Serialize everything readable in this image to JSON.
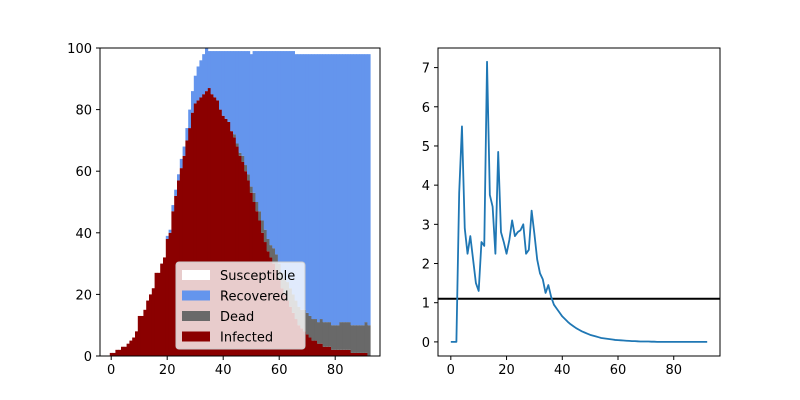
{
  "chart_data": [
    {
      "type": "area",
      "stacked": true,
      "step": true,
      "x": [
        0,
        1,
        2,
        3,
        4,
        5,
        6,
        7,
        8,
        9,
        10,
        11,
        12,
        13,
        14,
        15,
        16,
        17,
        18,
        19,
        20,
        21,
        22,
        23,
        24,
        25,
        26,
        27,
        28,
        29,
        30,
        31,
        32,
        33,
        34,
        35,
        36,
        37,
        38,
        39,
        40,
        41,
        42,
        43,
        44,
        45,
        46,
        47,
        48,
        49,
        50,
        51,
        52,
        53,
        54,
        55,
        56,
        57,
        58,
        59,
        60,
        61,
        62,
        63,
        64,
        65,
        66,
        67,
        68,
        69,
        70,
        71,
        72,
        73,
        74,
        75,
        76,
        77,
        78,
        79,
        80,
        81,
        82,
        83,
        84,
        85,
        86,
        87,
        88,
        89,
        90,
        91,
        92
      ],
      "xlim": [
        -4,
        96
      ],
      "ylim": [
        0,
        100
      ],
      "xticks": [
        "0",
        "20",
        "40",
        "60",
        "80"
      ],
      "yticks": [
        "0",
        "20",
        "40",
        "60",
        "80",
        "100"
      ],
      "series": [
        {
          "name": "Infected",
          "color": "#8b0000",
          "values": [
            1,
            1,
            2,
            2,
            3,
            3,
            4,
            5,
            6,
            8,
            13,
            13,
            15,
            18,
            20,
            22,
            27,
            27,
            30,
            32,
            38,
            40,
            47,
            52,
            57,
            61,
            65,
            70,
            74,
            79,
            82,
            83,
            84,
            85,
            86,
            87,
            85,
            84,
            83,
            80,
            78,
            77,
            76,
            73,
            71,
            68,
            65,
            63,
            60,
            57,
            53,
            50,
            47,
            44,
            40,
            37,
            34,
            32,
            30,
            28,
            25,
            22,
            20,
            18,
            16,
            14,
            12,
            10,
            9,
            8,
            7,
            6,
            5,
            5,
            4,
            4,
            3,
            3,
            3,
            2,
            2,
            2,
            2,
            2,
            2,
            2,
            1,
            1,
            1,
            1,
            1,
            1,
            0
          ]
        },
        {
          "name": "Dead",
          "color": "#696969",
          "values": [
            0,
            0,
            0,
            0,
            0,
            0,
            0,
            0,
            0,
            0,
            0,
            0,
            0,
            0,
            0,
            0,
            0,
            0,
            0,
            0,
            0,
            0,
            0,
            0,
            0,
            0,
            0,
            0,
            0,
            0,
            0,
            0,
            0,
            0,
            0,
            0,
            0,
            0,
            0,
            0,
            0,
            0,
            0,
            0,
            1,
            1,
            1,
            2,
            2,
            2,
            2,
            3,
            3,
            3,
            4,
            4,
            4,
            4,
            5,
            5,
            5,
            5,
            5,
            6,
            6,
            6,
            6,
            6,
            6,
            7,
            7,
            7,
            7,
            7,
            7,
            8,
            8,
            8,
            8,
            8,
            8,
            8,
            9,
            9,
            9,
            9,
            9,
            9,
            9,
            9,
            9,
            10,
            10
          ]
        },
        {
          "name": "Recovered",
          "color": "#6495ed",
          "values": [
            0,
            0,
            0,
            0,
            0,
            0,
            0,
            0,
            0,
            0,
            0,
            0,
            0,
            0,
            0,
            0,
            0,
            0,
            0,
            0,
            1,
            1,
            2,
            2,
            2,
            3,
            3,
            4,
            6,
            7,
            9,
            11,
            12,
            13,
            14,
            12,
            14,
            15,
            16,
            19,
            21,
            22,
            23,
            26,
            27,
            30,
            33,
            34,
            37,
            40,
            43,
            46,
            49,
            52,
            55,
            58,
            61,
            63,
            64,
            66,
            69,
            72,
            74,
            75,
            77,
            79,
            80,
            82,
            83,
            83,
            84,
            85,
            86,
            86,
            87,
            86,
            87,
            87,
            87,
            88,
            88,
            88,
            87,
            87,
            87,
            87,
            88,
            88,
            88,
            88,
            88,
            87,
            88
          ]
        }
      ],
      "legend": {
        "position": "lower-center",
        "entries": [
          {
            "label": "Susceptible",
            "color": "#ffffff"
          },
          {
            "label": "Recovered",
            "color": "#6495ed"
          },
          {
            "label": "Dead",
            "color": "#696969"
          },
          {
            "label": "Infected",
            "color": "#8b0000"
          }
        ]
      }
    },
    {
      "type": "line",
      "x": [
        0,
        1,
        2,
        3,
        4,
        5,
        6,
        7,
        8,
        9,
        10,
        11,
        12,
        13,
        14,
        15,
        16,
        17,
        18,
        19,
        20,
        21,
        22,
        23,
        24,
        25,
        26,
        27,
        28,
        29,
        30,
        31,
        32,
        33,
        34,
        35,
        36,
        37,
        38,
        39,
        40,
        41,
        42,
        43,
        44,
        45,
        46,
        47,
        48,
        49,
        50,
        51,
        52,
        53,
        54,
        55,
        56,
        57,
        58,
        59,
        60,
        61,
        62,
        63,
        64,
        65,
        66,
        67,
        68,
        69,
        70,
        71,
        72,
        73,
        74,
        75,
        76,
        77,
        78,
        79,
        80,
        81,
        82,
        83,
        84,
        85,
        86,
        87,
        88,
        89,
        90,
        91,
        92
      ],
      "series": [
        {
          "color": "#1f77b4",
          "values": [
            0,
            0,
            0,
            3.8,
            5.5,
            2.9,
            2.25,
            2.7,
            2.1,
            1.5,
            1.3,
            2.55,
            2.45,
            7.15,
            3.75,
            3.45,
            2.25,
            4.85,
            2.8,
            2.55,
            2.25,
            2.6,
            3.1,
            2.7,
            2.8,
            2.85,
            3.0,
            2.25,
            2.35,
            3.35,
            2.75,
            2.1,
            1.75,
            1.6,
            1.25,
            1.45,
            1.15,
            0.95,
            0.85,
            0.75,
            0.65,
            0.58,
            0.51,
            0.45,
            0.4,
            0.35,
            0.31,
            0.27,
            0.24,
            0.21,
            0.18,
            0.16,
            0.14,
            0.12,
            0.1,
            0.09,
            0.08,
            0.07,
            0.06,
            0.05,
            0.045,
            0.04,
            0.035,
            0.03,
            0.025,
            0.02,
            0.02,
            0.015,
            0.01,
            0.01,
            0.01,
            0.01,
            0.005,
            0.005,
            0,
            0,
            0,
            0,
            0,
            0,
            0,
            0,
            0,
            0,
            0,
            0,
            0,
            0,
            0,
            0,
            0,
            0,
            0
          ]
        }
      ],
      "hline": 1.1,
      "hline_color": "#000000",
      "xlim": [
        -4.6,
        96.6
      ],
      "ylim": [
        -0.36,
        7.5
      ],
      "xticks": [
        "0",
        "20",
        "40",
        "60",
        "80"
      ],
      "yticks": [
        "0",
        "1",
        "2",
        "3",
        "4",
        "5",
        "6",
        "7"
      ]
    }
  ]
}
